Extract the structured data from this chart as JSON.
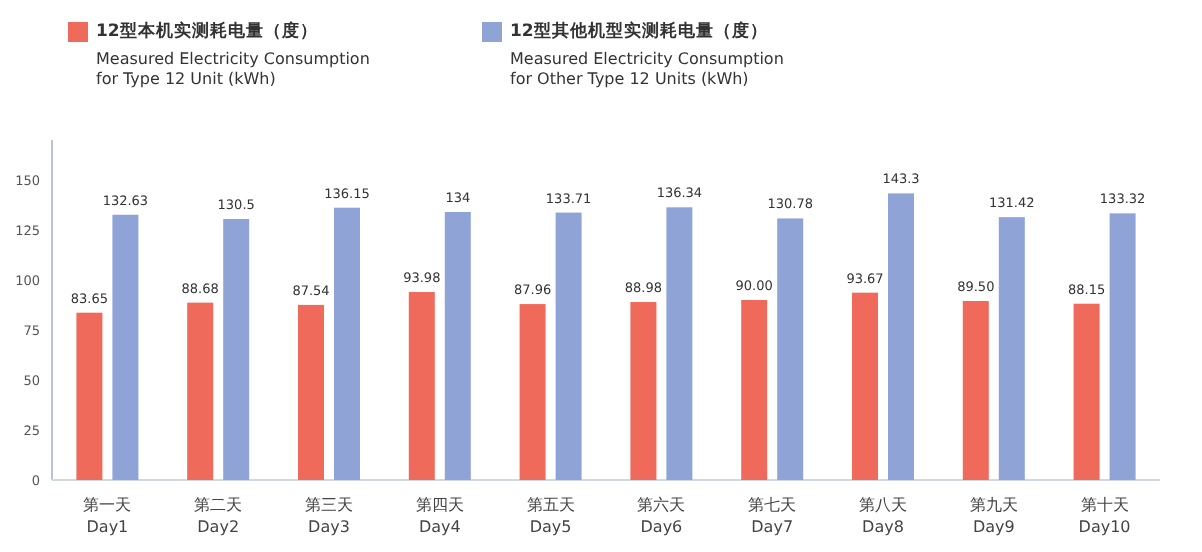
{
  "chart_data": {
    "type": "bar",
    "categories": [
      "第一天\nDay1",
      "第二天\nDay2",
      "第三天\nDay3",
      "第四天\nDay4",
      "第五天\nDay5",
      "第六天\nDay6",
      "第七天\nDay7",
      "第八天\nDay8",
      "第九天\nDay9",
      "第十天\nDay10"
    ],
    "series": [
      {
        "name": "12型本机实测耗电量（度）\nMeasured Electricity Consumption\nfor Type 12 Unit (kWh)",
        "color": "#ef6a5a",
        "values": [
          83.65,
          88.68,
          87.54,
          93.98,
          87.96,
          88.98,
          90.0,
          93.67,
          89.5,
          88.15
        ],
        "value_labels": [
          "83.65",
          "88.68",
          "87.54",
          "93.98",
          "87.96",
          "88.98",
          "90.00",
          "93.67",
          "89.50",
          "88.15"
        ]
      },
      {
        "name": "12型其他机型实测耗电量（度）\nMeasured Electricity Consumption\nfor Other Type 12 Units (kWh)",
        "color": "#8fa3d6",
        "values": [
          132.63,
          130.5,
          136.15,
          134,
          133.71,
          136.34,
          130.78,
          143.3,
          131.42,
          133.32
        ],
        "value_labels": [
          "132.63",
          "130.5",
          "136.15",
          "134",
          "133.71",
          "136.34",
          "130.78",
          "143.3",
          "131.42",
          "133.32"
        ]
      }
    ],
    "ylim": [
      0,
      170
    ],
    "yticks": [
      0,
      25,
      50,
      75,
      100,
      125,
      150
    ],
    "legend": "top"
  }
}
